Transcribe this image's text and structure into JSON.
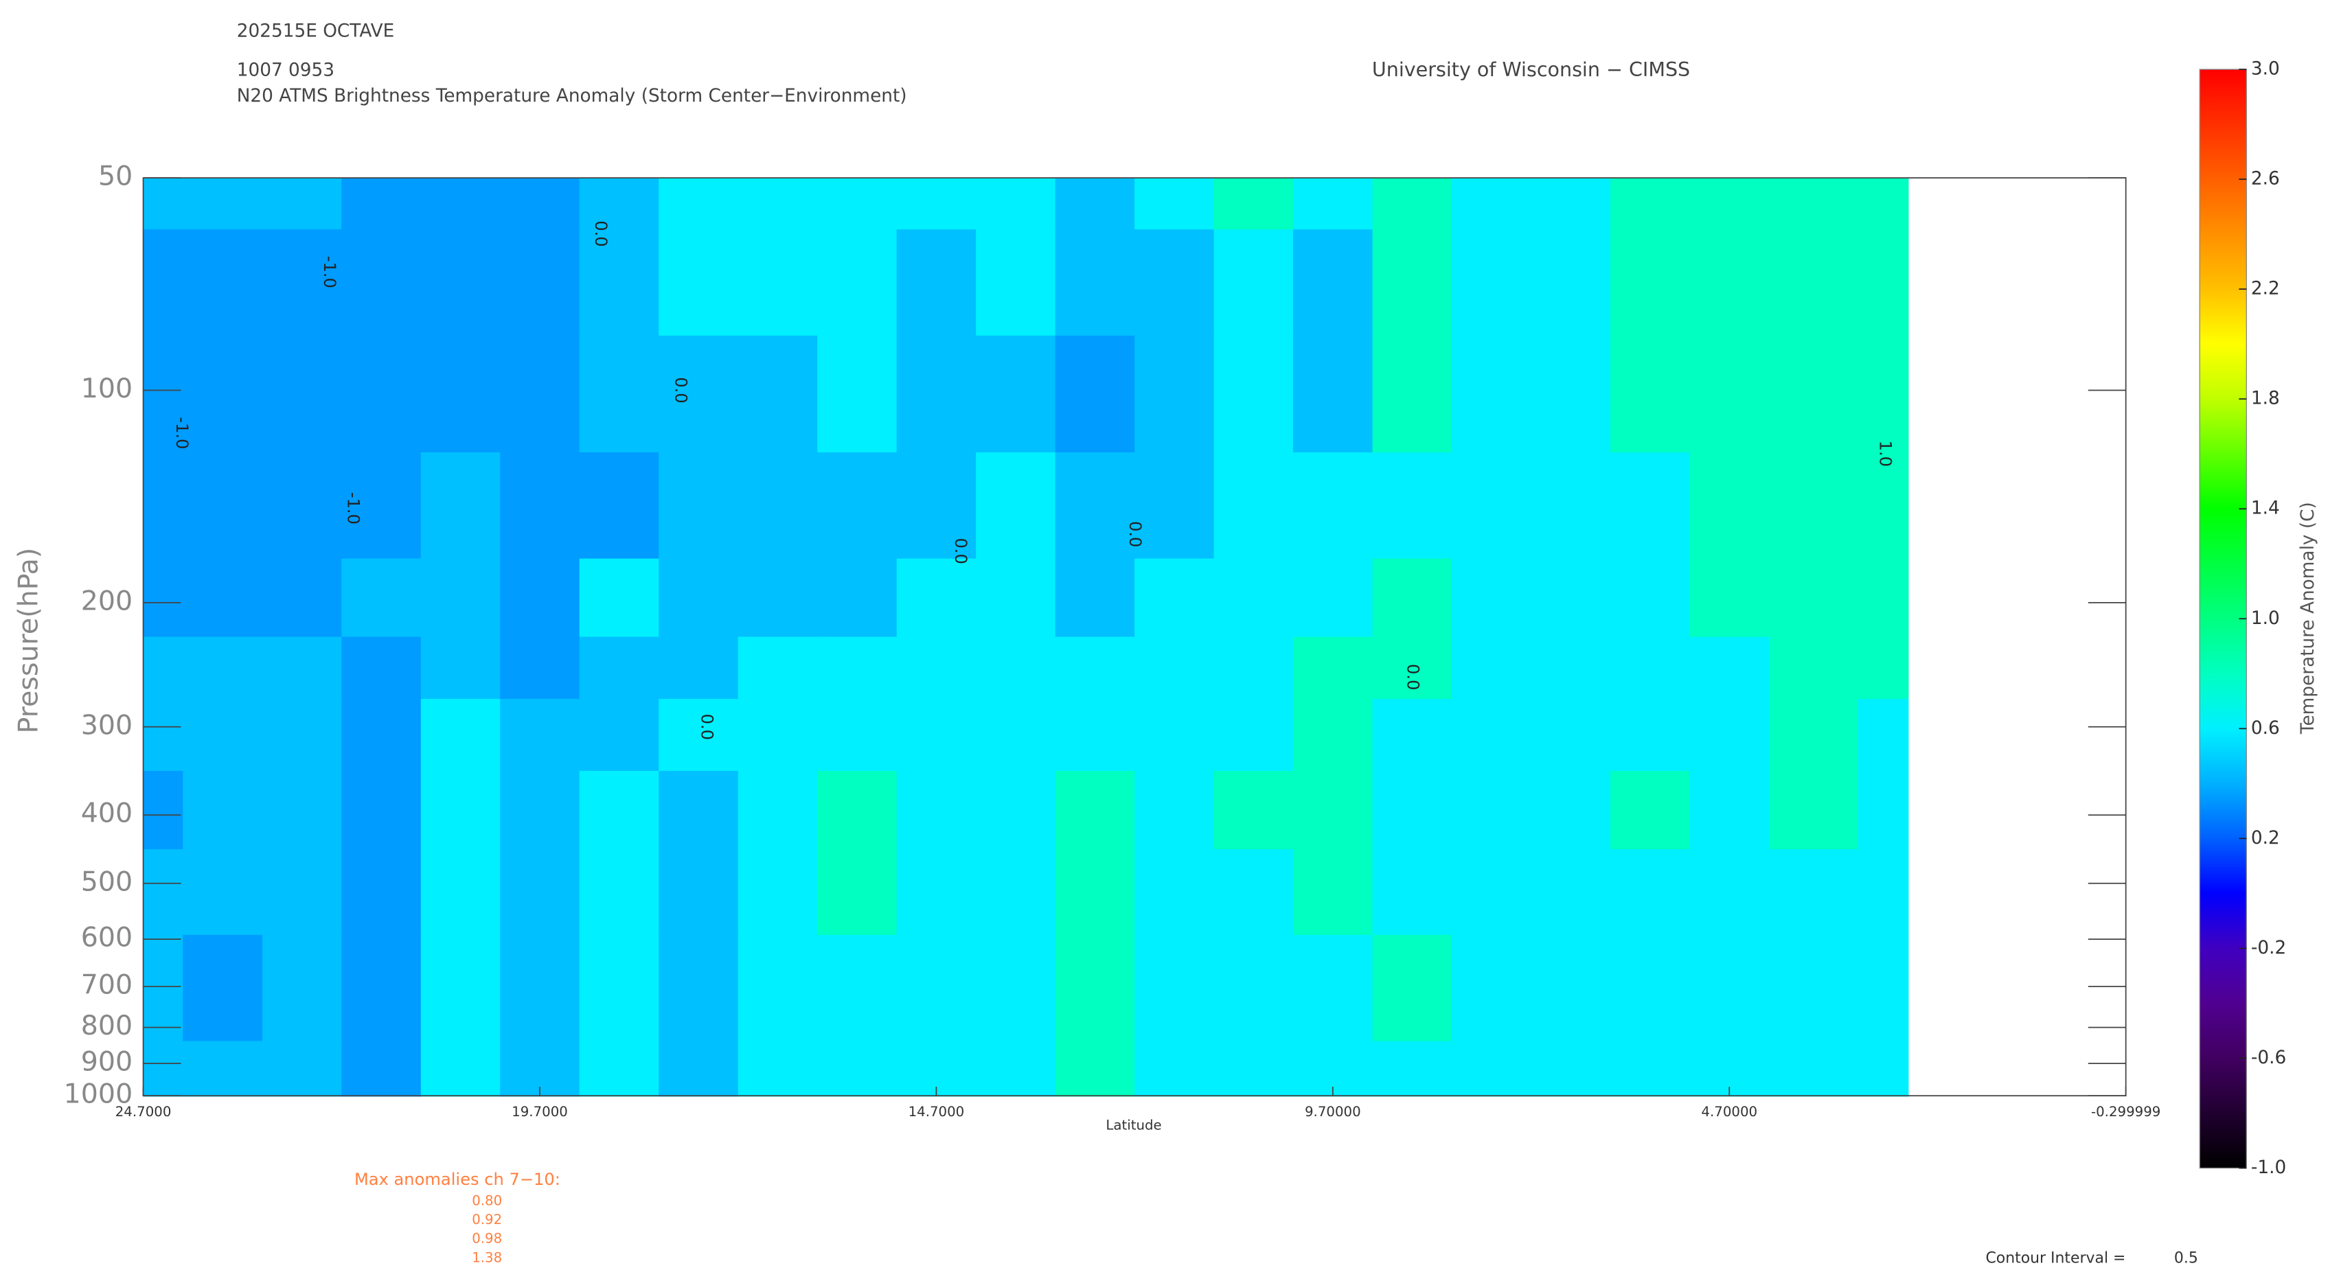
{
  "chart_data": {
    "type": "contour",
    "header": [
      "202515E OCTAVE",
      "1007 0953"
    ],
    "title": "N20 ATMS Brightness Temperature Anomaly (Storm Center−Environment)",
    "source": "University of Wisconsin − CIMSS",
    "xlabel": "Latitude",
    "ylabel": "Pressure(hPa)",
    "colorbar_label": "Temperature Anomaly (C)",
    "xlim": [
      24.7,
      -0.299999
    ],
    "xticks": [
      {
        "value": 24.7,
        "label": "24.7000"
      },
      {
        "value": 19.7,
        "label": "19.7000"
      },
      {
        "value": 14.7,
        "label": "14.7000"
      },
      {
        "value": 9.7,
        "label": "9.70000"
      },
      {
        "value": 4.7,
        "label": "4.70000"
      },
      {
        "value": -0.299999,
        "label": "-0.299999"
      }
    ],
    "ylim": [
      50,
      1000
    ],
    "ylog": true,
    "yticks": [
      50,
      100,
      200,
      300,
      400,
      500,
      600,
      700,
      800,
      900,
      1000
    ],
    "clim": [
      -1,
      3
    ],
    "cticks": [
      {
        "value": -1,
        "label": "-1.0"
      },
      -0.6,
      -0.2,
      0.2,
      0.6,
      {
        "value": 1,
        "label": "1.0"
      },
      1.4,
      1.8,
      2.2,
      2.6,
      {
        "value": 3,
        "label": "3.0"
      }
    ],
    "colormap": [
      "#000000",
      "#200030",
      "#400060",
      "#500090",
      "#4000c0",
      "#0000ff",
      "#0060ff",
      "#00b0ff",
      "#00f0ff",
      "#00ffc0",
      "#00ff80",
      "#00ff40",
      "#00ff00",
      "#60ff00",
      "#c0ff00",
      "#ffff00",
      "#ffc000",
      "#ff9000",
      "#ff6000",
      "#ff3000",
      "#ff0000"
    ],
    "x": [
      24.7,
      23.7,
      22.7,
      21.7,
      20.7,
      19.7,
      18.7,
      17.7,
      16.7,
      15.7,
      14.7,
      13.7,
      12.7,
      11.7,
      10.7,
      9.7,
      8.7,
      7.7,
      6.7,
      5.7,
      4.7,
      3.7,
      2.45
    ],
    "y": [
      50,
      70,
      100,
      150,
      200,
      250,
      300,
      400,
      500,
      700,
      1000
    ],
    "z": [
      [
        0.45,
        0.45,
        0.45,
        0.35,
        0.35,
        0.35,
        0.45,
        0.6,
        0.6,
        0.6,
        0.6,
        0.6,
        0.45,
        0.6,
        0.8,
        0.6,
        0.8,
        0.6,
        0.6,
        0.8,
        0.8,
        0.8,
        0.8
      ],
      [
        0.35,
        0.35,
        0.35,
        0.35,
        0.35,
        0.35,
        0.45,
        0.6,
        0.6,
        0.6,
        0.45,
        0.6,
        0.45,
        0.45,
        0.6,
        0.45,
        0.8,
        0.6,
        0.6,
        0.8,
        0.8,
        0.8,
        0.8
      ],
      [
        0.35,
        0.35,
        0.35,
        0.35,
        0.35,
        0.35,
        0.45,
        0.45,
        0.45,
        0.6,
        0.45,
        0.45,
        0.35,
        0.45,
        0.6,
        0.45,
        0.8,
        0.6,
        0.6,
        0.8,
        0.8,
        0.8,
        0.8
      ],
      [
        0.35,
        0.35,
        0.35,
        0.35,
        0.45,
        0.35,
        0.35,
        0.45,
        0.45,
        0.45,
        0.45,
        0.6,
        0.45,
        0.45,
        0.6,
        0.6,
        0.6,
        0.6,
        0.6,
        0.6,
        0.8,
        0.8,
        0.8
      ],
      [
        0.35,
        0.35,
        0.35,
        0.45,
        0.45,
        0.35,
        0.6,
        0.45,
        0.45,
        0.45,
        0.6,
        0.6,
        0.45,
        0.6,
        0.6,
        0.6,
        0.8,
        0.6,
        0.6,
        0.6,
        0.8,
        0.8,
        0.8
      ],
      [
        0.45,
        0.45,
        0.45,
        0.35,
        0.45,
        0.35,
        0.45,
        0.45,
        0.6,
        0.6,
        0.6,
        0.6,
        0.6,
        0.6,
        0.6,
        0.8,
        0.8,
        0.6,
        0.6,
        0.6,
        0.6,
        0.8,
        0.8
      ],
      [
        0.45,
        0.45,
        0.45,
        0.35,
        0.6,
        0.45,
        0.45,
        0.6,
        0.6,
        0.6,
        0.6,
        0.6,
        0.6,
        0.6,
        0.6,
        0.8,
        0.6,
        0.6,
        0.6,
        0.6,
        0.6,
        0.8,
        0.6
      ],
      [
        0.35,
        0.45,
        0.45,
        0.35,
        0.6,
        0.45,
        0.6,
        0.45,
        0.6,
        0.8,
        0.6,
        0.6,
        0.8,
        0.6,
        0.8,
        0.8,
        0.6,
        0.6,
        0.6,
        0.8,
        0.6,
        0.8,
        0.6
      ],
      [
        0.45,
        0.45,
        0.45,
        0.35,
        0.6,
        0.45,
        0.6,
        0.45,
        0.6,
        0.8,
        0.6,
        0.6,
        0.8,
        0.6,
        0.6,
        0.8,
        0.6,
        0.6,
        0.6,
        0.6,
        0.6,
        0.6,
        0.6
      ],
      [
        0.45,
        0.35,
        0.45,
        0.35,
        0.6,
        0.45,
        0.6,
        0.45,
        0.6,
        0.6,
        0.6,
        0.6,
        0.8,
        0.6,
        0.6,
        0.6,
        0.8,
        0.6,
        0.6,
        0.6,
        0.6,
        0.6,
        0.6
      ],
      [
        0.45,
        0.45,
        0.45,
        0.35,
        0.6,
        0.45,
        0.6,
        0.45,
        0.6,
        0.6,
        0.6,
        0.6,
        0.8,
        0.6,
        0.6,
        0.6,
        0.6,
        0.6,
        0.6,
        0.6,
        0.6,
        0.6,
        0.6
      ]
    ],
    "contour_labels": [
      {
        "text": "-1.0",
        "x": 22.36,
        "y": 68
      },
      {
        "text": "-1.0",
        "x": 24.22,
        "y": 115
      },
      {
        "text": "-1.0",
        "x": 22.06,
        "y": 147
      },
      {
        "text": "0.0",
        "x": 18.94,
        "y": 60
      },
      {
        "text": "0.0",
        "x": 17.93,
        "y": 100
      },
      {
        "text": "0.0",
        "x": 17.6,
        "y": 300
      },
      {
        "text": "0.0",
        "x": 14.4,
        "y": 169
      },
      {
        "text": "0.0",
        "x": 12.2,
        "y": 160
      },
      {
        "text": "0.0",
        "x": 8.7,
        "y": 255
      },
      {
        "text": "1.0",
        "x": 2.74,
        "y": 123
      }
    ],
    "max_anomalies_title": "Max anomalies ch 7−10:",
    "max_anomalies": [
      {
        "value": 0.8,
        "label": "0.80"
      },
      0.92,
      0.98,
      1.38
    ],
    "contour_interval_label": "Contour Interval =",
    "contour_interval": 0.5
  }
}
